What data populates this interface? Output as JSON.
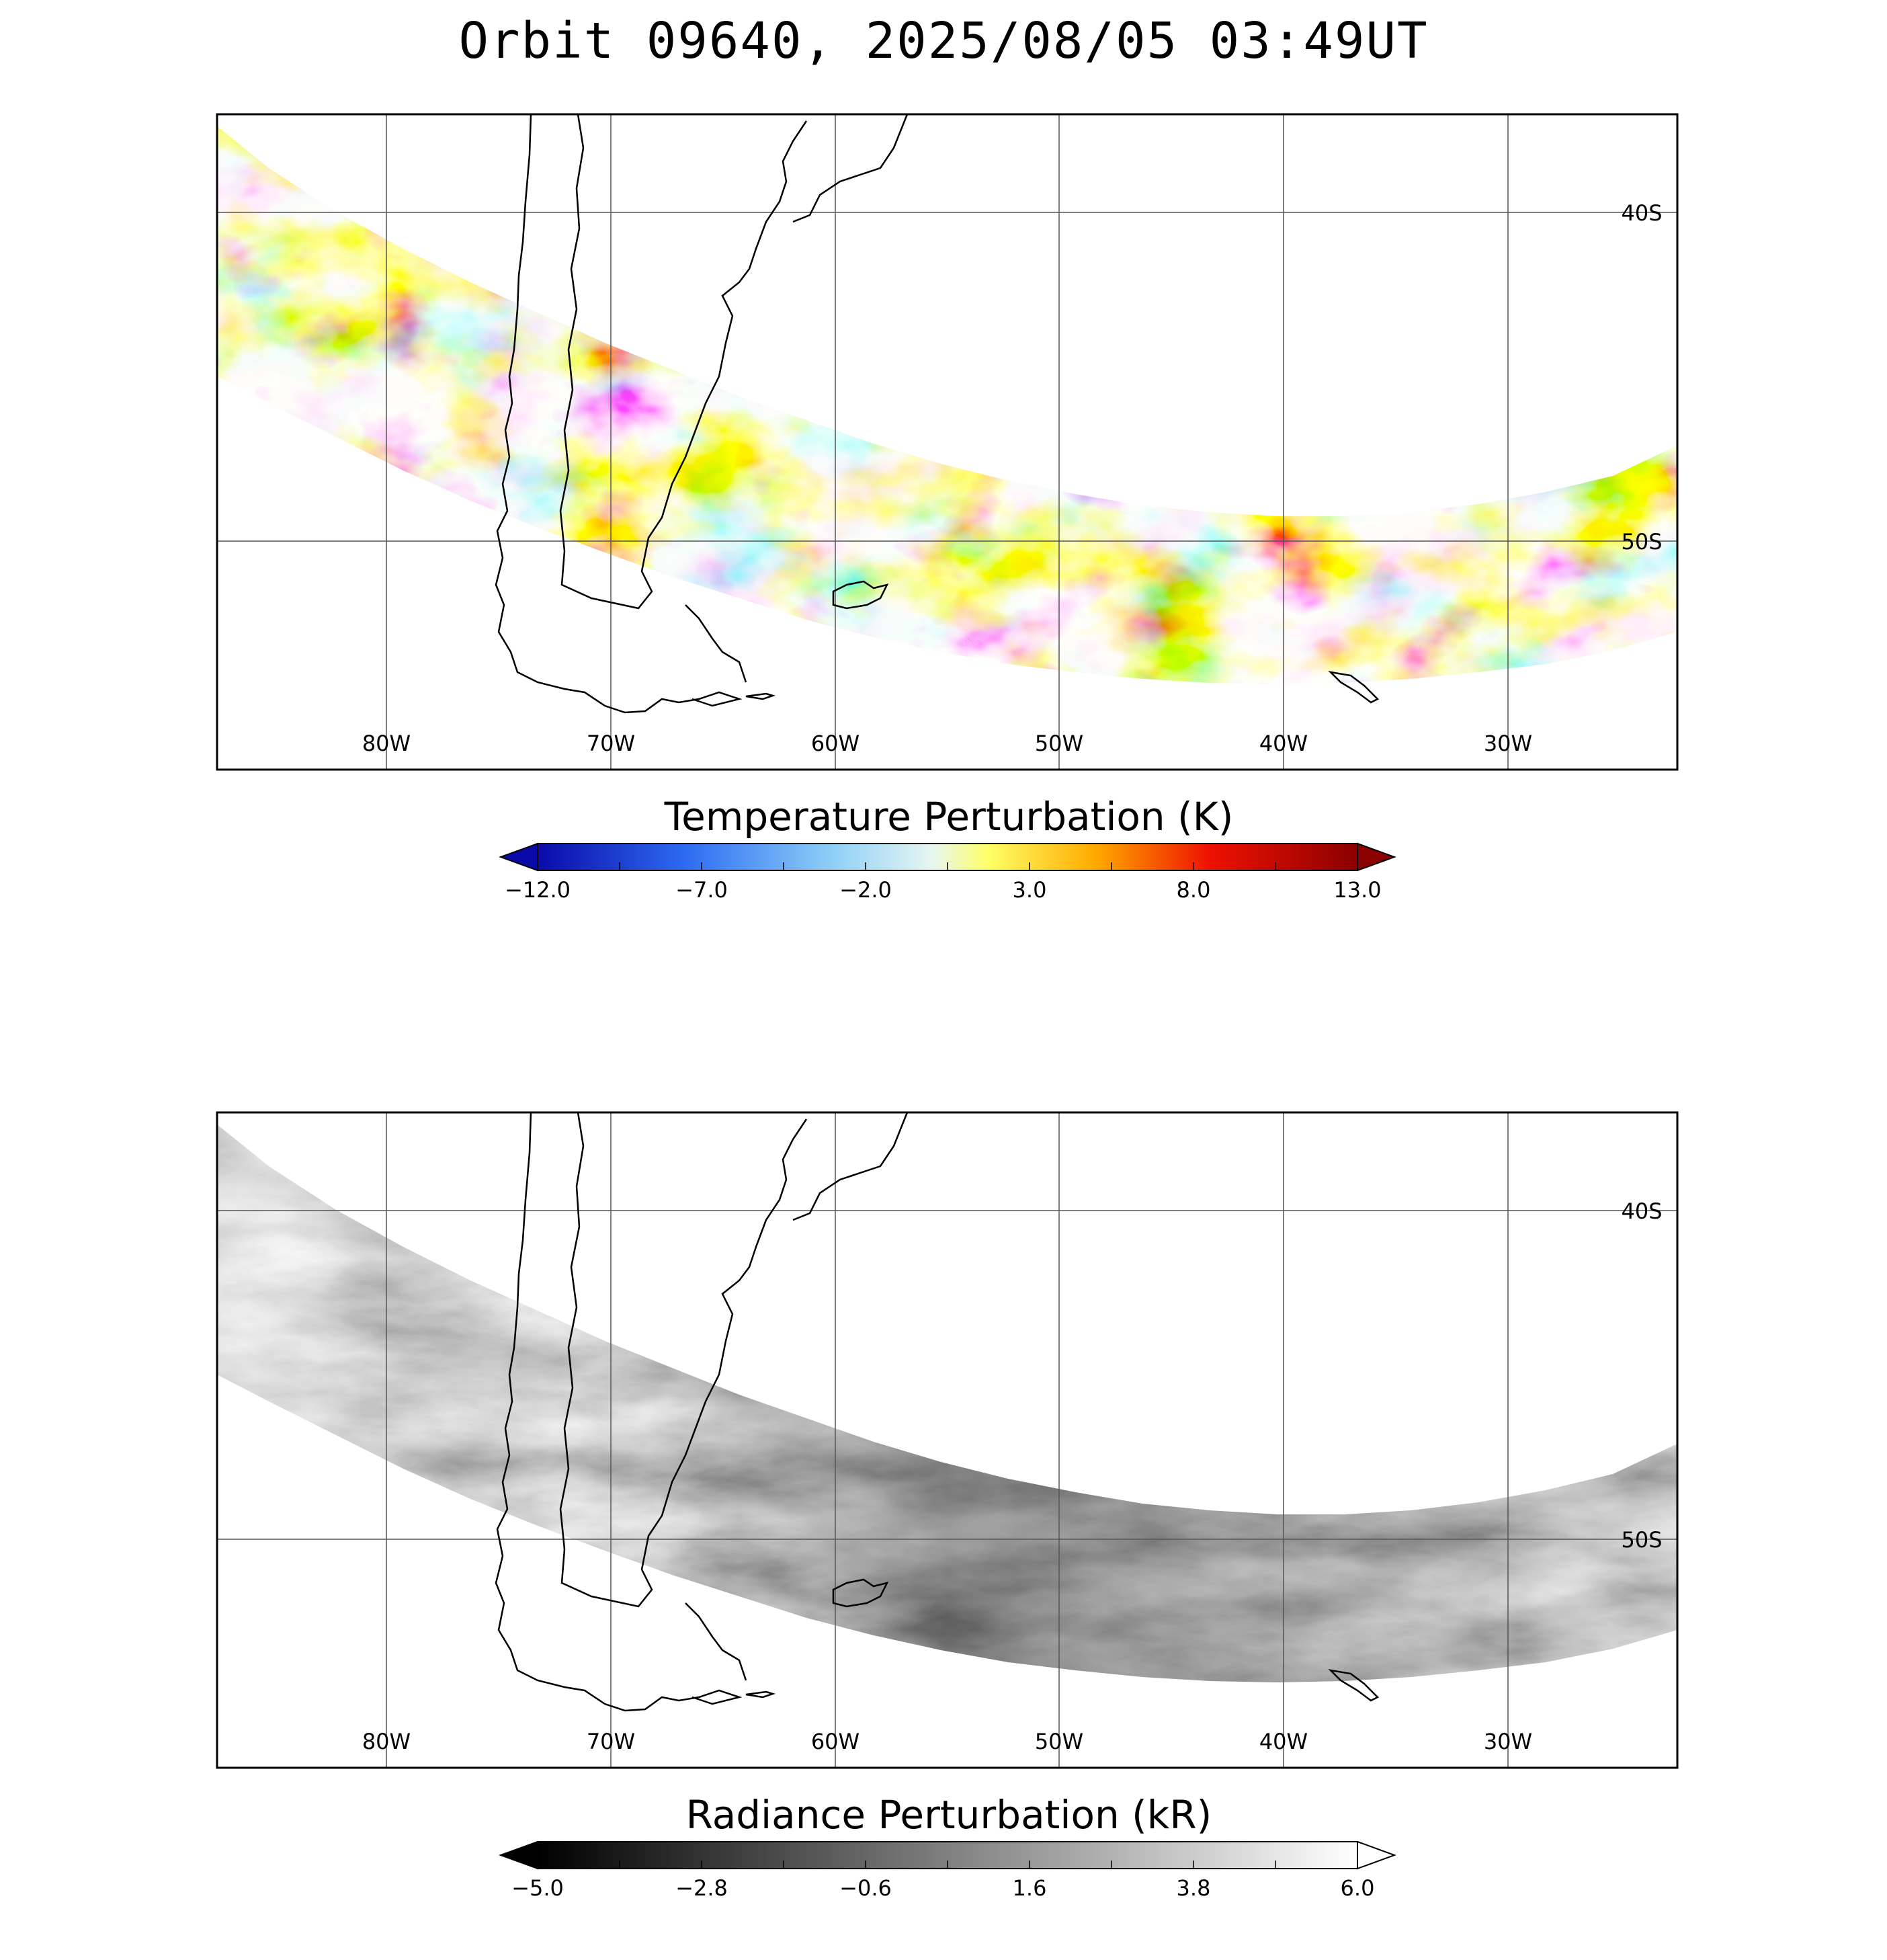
{
  "title": "Orbit 09640, 2025/08/05 03:49UT",
  "panels": [
    {
      "name": "temperature",
      "lon_labels": [
        "80W",
        "70W",
        "60W",
        "50W",
        "40W",
        "30W"
      ],
      "lat_labels": [
        "40S",
        "50S"
      ],
      "colorbar": {
        "title": "Temperature Perturbation (K)",
        "ticks": [
          "−12.0",
          "−7.0",
          "−2.0",
          "3.0",
          "8.0",
          "13.0"
        ],
        "min": -12.0,
        "max": 13.0,
        "colormap": "blue-white-yellow-red",
        "colors": [
          "#0a0aa8",
          "#2d6bf2",
          "#8fd0f7",
          "#e6f6f2",
          "#ffff66",
          "#ffaa00",
          "#ee1100",
          "#8b0000"
        ]
      }
    },
    {
      "name": "radiance",
      "lon_labels": [
        "80W",
        "70W",
        "60W",
        "50W",
        "40W",
        "30W"
      ],
      "lat_labels": [
        "40S",
        "50S"
      ],
      "colorbar": {
        "title": "Radiance Perturbation (kR)",
        "ticks": [
          "−5.0",
          "−2.8",
          "−0.6",
          "1.6",
          "3.8",
          "6.0"
        ],
        "min": -5.0,
        "max": 6.0,
        "colormap": "grayscale",
        "colors": [
          "#000000",
          "#ffffff"
        ]
      }
    }
  ]
}
